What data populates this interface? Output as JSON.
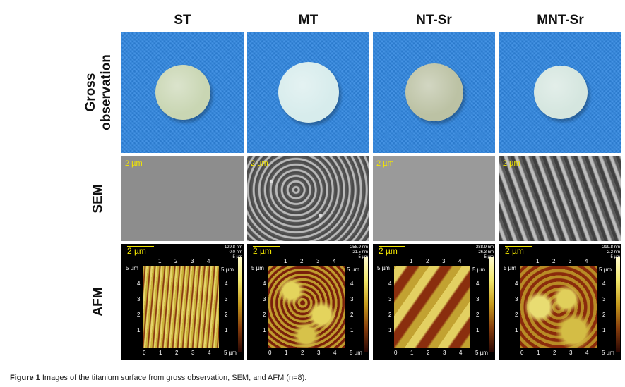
{
  "columns": [
    "ST",
    "MT",
    "NT-Sr",
    "MNT-Sr"
  ],
  "rows": [
    "Gross observation",
    "SEM",
    "AFM"
  ],
  "sem_scale": "2 µm",
  "afm": {
    "scale": "2 µm",
    "axis_unit": "5 µm",
    "ticks": [
      "0",
      "1",
      "2",
      "3",
      "4",
      "5 µm"
    ],
    "y_ticks": [
      "1",
      "2",
      "3",
      "4",
      "5 µm"
    ],
    "panels": [
      {
        "max": "129.8 nm",
        "min": "–0.0 nm"
      },
      {
        "max": "258.9 nm",
        "min": "21.5 nm"
      },
      {
        "max": "288.9 nm",
        "min": "26.3 nm"
      },
      {
        "max": "219.8 nm",
        "min": "–2.2 nm"
      }
    ]
  },
  "disc_colors": [
    "#c9d6b3",
    "#d7ecec",
    "#bcc2a4",
    "#d5e6df"
  ],
  "caption": {
    "label": "Figure 1",
    "text": "Images of the titanium surface from gross observation, SEM, and AFM (n=8)."
  }
}
